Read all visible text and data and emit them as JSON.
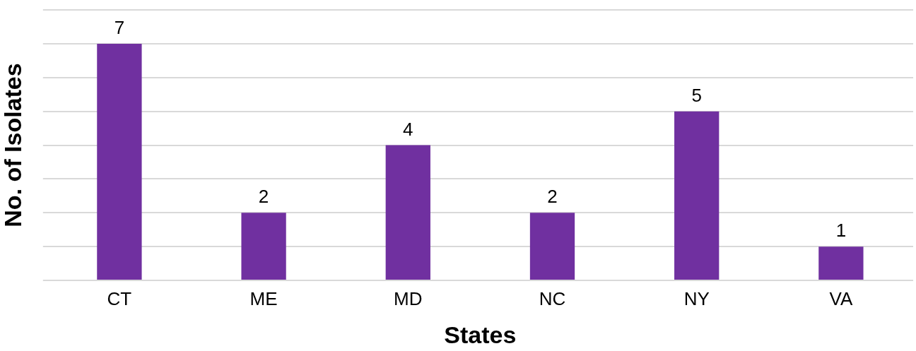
{
  "chart_data": {
    "type": "bar",
    "xlabel": "States",
    "ylabel": "No. of Isolates",
    "categories": [
      "CT",
      "ME",
      "MD",
      "NC",
      "NY",
      "VA"
    ],
    "values": [
      7,
      2,
      4,
      2,
      5,
      1
    ],
    "color": "#7030a0",
    "ylim": [
      0,
      8
    ],
    "yticks": [
      {
        "value": 0,
        "label": null
      },
      {
        "value": 1,
        "label": null
      },
      {
        "value": 2,
        "label": null
      },
      {
        "value": 3,
        "label": null
      },
      {
        "value": 4,
        "label": null
      },
      {
        "value": 5,
        "label": null
      },
      {
        "value": 6,
        "label": null
      },
      {
        "value": 7,
        "label": null
      },
      {
        "value": 8,
        "label": null
      }
    ],
    "tick_labels": "x",
    "grid": "y",
    "data_labels": true,
    "legend": false
  }
}
